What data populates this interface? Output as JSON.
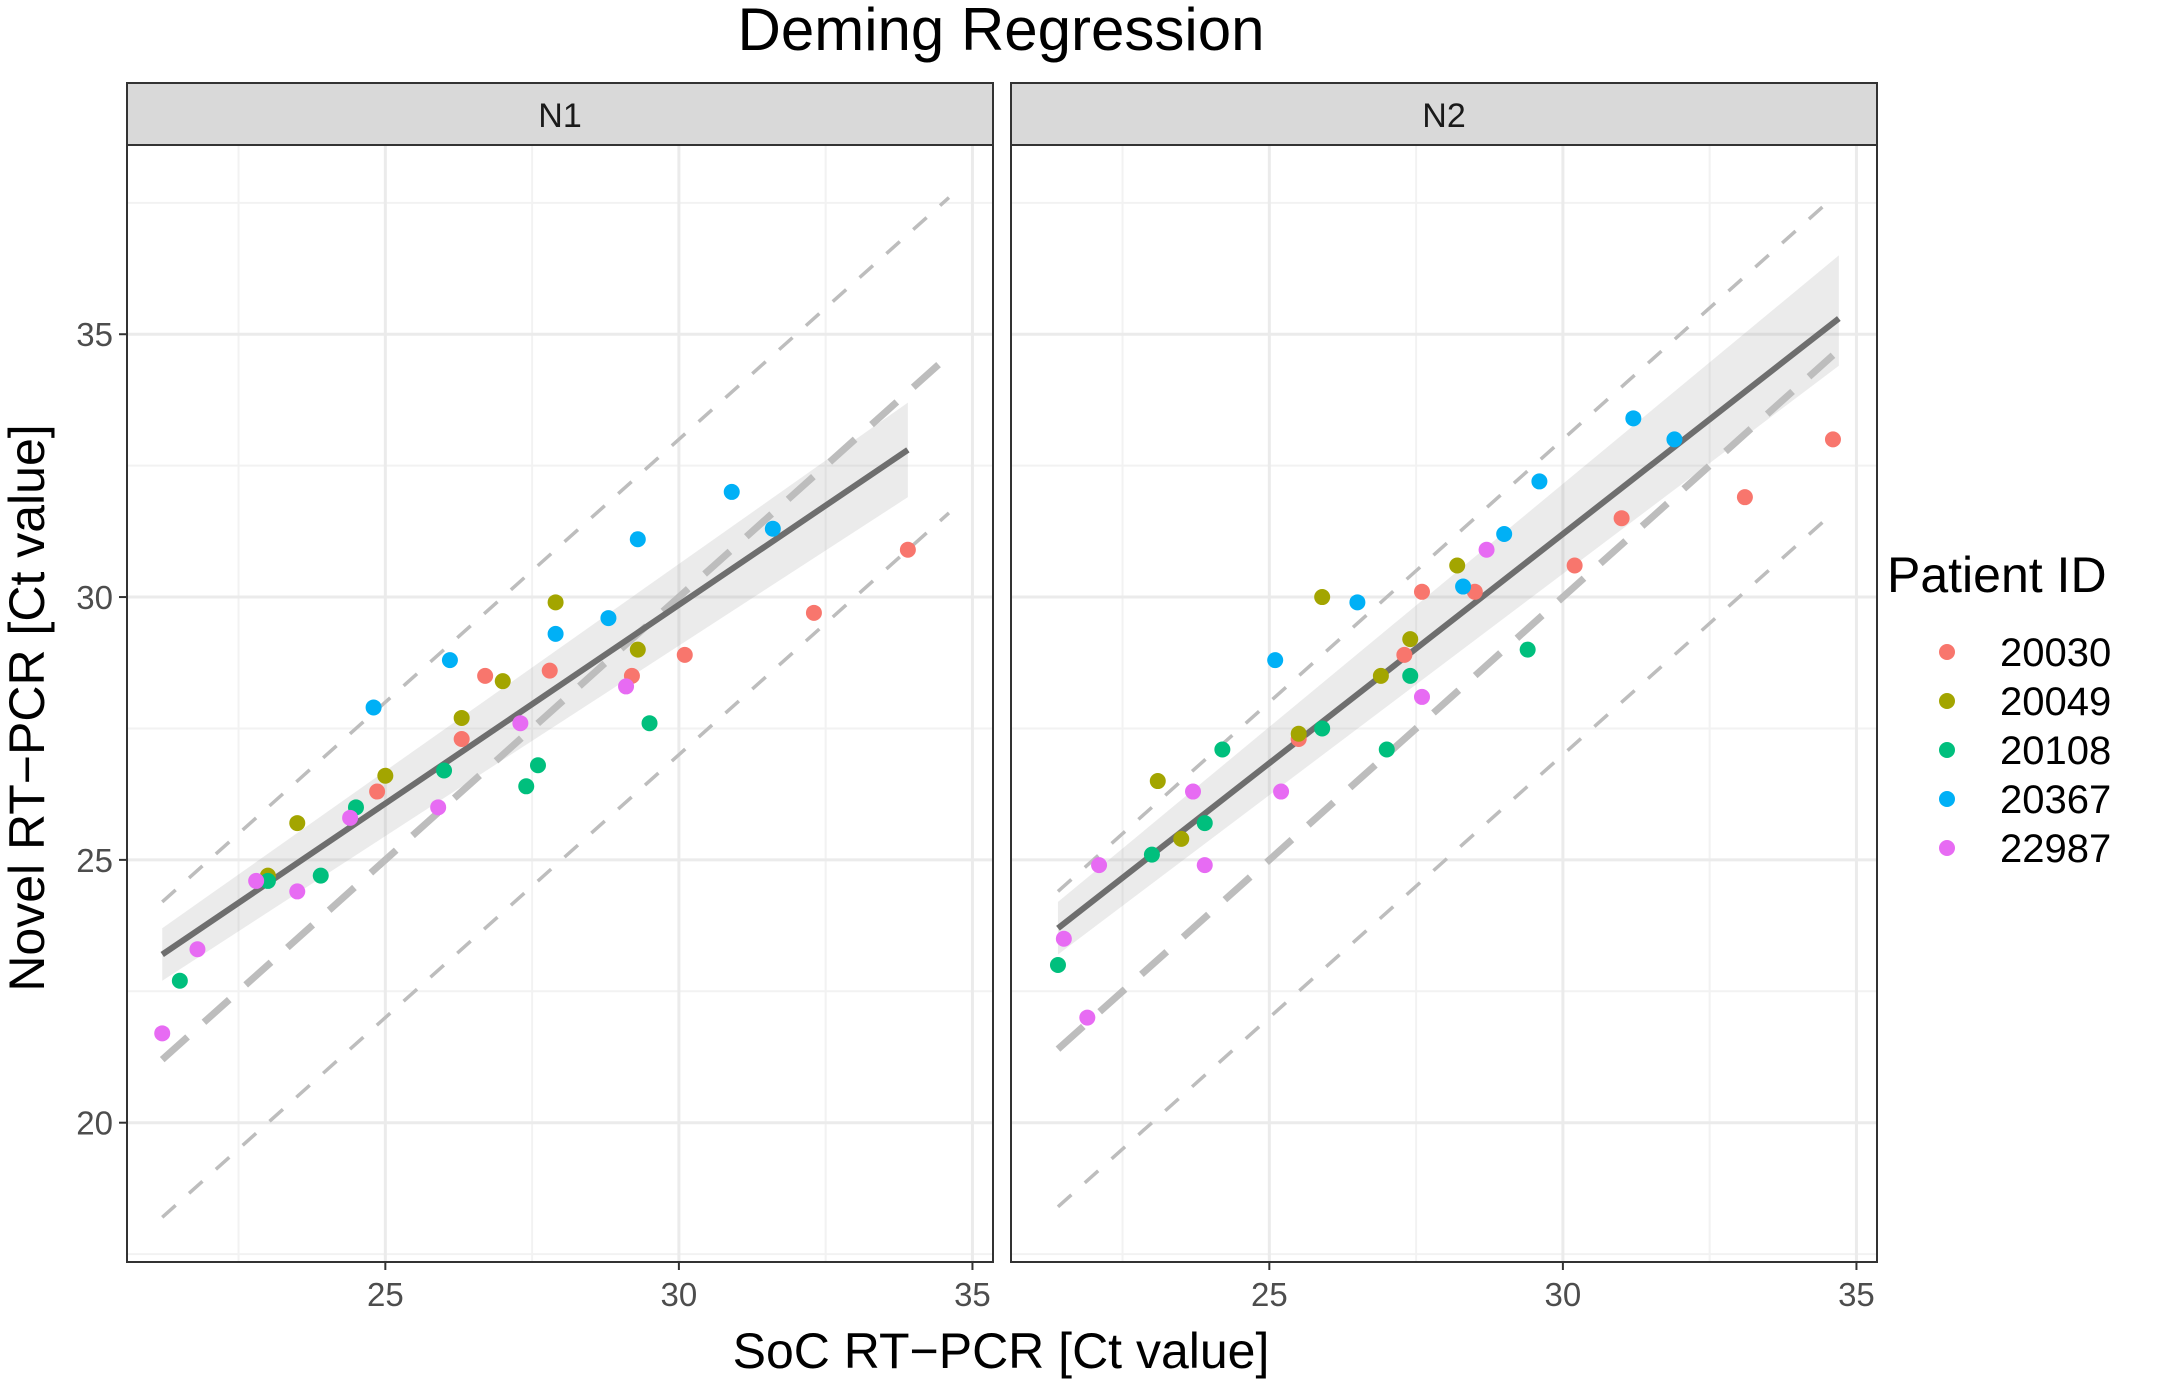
{
  "chart_data": {
    "type": "scatter",
    "title": "Deming Regression",
    "xlabel": "SoC RT−PCR [Ct value]",
    "ylabel": "Novel RT−PCR [Ct value]",
    "xlim": [
      20.6,
      35.35
    ],
    "ylim": [
      17.35,
      38.6
    ],
    "x_ticks": [
      25,
      30,
      35
    ],
    "y_ticks": [
      20,
      25,
      30,
      35
    ],
    "x_tick_labels": [
      "25",
      "30",
      "35"
    ],
    "y_tick_labels": [
      "20",
      "25",
      "30",
      "35"
    ],
    "grid": true,
    "legend": {
      "title": "Patient ID",
      "placement": "right",
      "entries": [
        {
          "name": "20030",
          "color": "#F8766D"
        },
        {
          "name": "20049",
          "color": "#A3A500"
        },
        {
          "name": "20108",
          "color": "#00BF7D"
        },
        {
          "name": "20367",
          "color": "#00B0F6"
        },
        {
          "name": "22987",
          "color": "#E76BF3"
        }
      ]
    },
    "reference_lines": [
      {
        "name": "identity",
        "slope": 1,
        "intercept": 0,
        "style": "long-dash",
        "color": "#bdbdbd"
      },
      {
        "name": "upper-limit",
        "slope": 1,
        "intercept": 3,
        "style": "dash",
        "color": "#bdbdbd"
      },
      {
        "name": "lower-limit",
        "slope": 1,
        "intercept": -3,
        "style": "dash",
        "color": "#bdbdbd"
      }
    ],
    "panels": [
      {
        "name": "N1",
        "regression": {
          "x": [
            21.2,
            33.9
          ],
          "y": [
            23.2,
            32.8
          ],
          "ci_low": [
            22.7,
            31.9
          ],
          "ci_high": [
            23.7,
            33.7
          ]
        },
        "ref_x_range": [
          21.2,
          34.6
        ],
        "series": [
          {
            "name": "20030",
            "points": [
              [
                24.86,
                26.3
              ],
              [
                26.3,
                27.3
              ],
              [
                26.7,
                28.5
              ],
              [
                27.8,
                28.6
              ],
              [
                29.2,
                28.5
              ],
              [
                30.1,
                28.9
              ],
              [
                32.3,
                29.7
              ],
              [
                33.9,
                30.9
              ]
            ]
          },
          {
            "name": "20049",
            "points": [
              [
                23.0,
                24.7
              ],
              [
                23.5,
                25.7
              ],
              [
                25.0,
                26.6
              ],
              [
                26.3,
                27.7
              ],
              [
                27.0,
                28.4
              ],
              [
                27.9,
                29.9
              ],
              [
                29.3,
                29.0
              ]
            ]
          },
          {
            "name": "20108",
            "points": [
              [
                21.5,
                22.7
              ],
              [
                23.0,
                24.6
              ],
              [
                23.9,
                24.7
              ],
              [
                24.5,
                26.0
              ],
              [
                26.0,
                26.7
              ],
              [
                27.4,
                26.4
              ],
              [
                27.6,
                26.8
              ],
              [
                29.5,
                27.6
              ]
            ]
          },
          {
            "name": "20367",
            "points": [
              [
                24.8,
                27.9
              ],
              [
                26.1,
                28.8
              ],
              [
                27.9,
                29.3
              ],
              [
                28.8,
                29.6
              ],
              [
                29.3,
                31.1
              ],
              [
                30.9,
                32.0
              ],
              [
                31.6,
                31.3
              ]
            ]
          },
          {
            "name": "22987",
            "points": [
              [
                21.2,
                21.7
              ],
              [
                21.8,
                23.3
              ],
              [
                22.8,
                24.6
              ],
              [
                23.5,
                24.4
              ],
              [
                24.4,
                25.8
              ],
              [
                25.9,
                26.0
              ],
              [
                27.3,
                27.6
              ],
              [
                29.1,
                28.3
              ]
            ]
          }
        ]
      },
      {
        "name": "N2",
        "regression": {
          "x": [
            21.4,
            34.7
          ],
          "y": [
            23.7,
            35.3
          ],
          "ci_low": [
            23.2,
            34.4
          ],
          "ci_high": [
            24.2,
            36.5
          ]
        },
        "ref_x_range": [
          21.4,
          34.6
        ],
        "series": [
          {
            "name": "20030",
            "points": [
              [
                25.5,
                27.3
              ],
              [
                27.3,
                28.9
              ],
              [
                27.6,
                30.1
              ],
              [
                28.5,
                30.1
              ],
              [
                30.2,
                30.6
              ],
              [
                31.0,
                31.5
              ],
              [
                33.1,
                31.9
              ],
              [
                34.6,
                33.0
              ]
            ]
          },
          {
            "name": "20049",
            "points": [
              [
                23.1,
                26.5
              ],
              [
                23.5,
                25.4
              ],
              [
                25.5,
                27.4
              ],
              [
                26.9,
                28.5
              ],
              [
                27.4,
                29.2
              ],
              [
                25.9,
                30.0
              ],
              [
                28.2,
                30.6
              ]
            ]
          },
          {
            "name": "20108",
            "points": [
              [
                21.4,
                23.0
              ],
              [
                23.0,
                25.1
              ],
              [
                23.9,
                25.7
              ],
              [
                24.2,
                27.1
              ],
              [
                25.9,
                27.5
              ],
              [
                27.0,
                27.1
              ],
              [
                27.4,
                28.5
              ],
              [
                29.4,
                29.0
              ]
            ]
          },
          {
            "name": "20367",
            "points": [
              [
                25.1,
                28.8
              ],
              [
                26.5,
                29.9
              ],
              [
                28.3,
                30.2
              ],
              [
                29.0,
                31.2
              ],
              [
                29.6,
                32.2
              ],
              [
                31.2,
                33.4
              ],
              [
                31.9,
                33.0
              ]
            ]
          },
          {
            "name": "22987",
            "points": [
              [
                21.5,
                23.5
              ],
              [
                21.9,
                22.0
              ],
              [
                22.1,
                24.9
              ],
              [
                23.7,
                26.3
              ],
              [
                23.9,
                24.9
              ],
              [
                25.2,
                26.3
              ],
              [
                27.6,
                28.1
              ],
              [
                28.7,
                30.9
              ]
            ]
          }
        ]
      }
    ]
  }
}
